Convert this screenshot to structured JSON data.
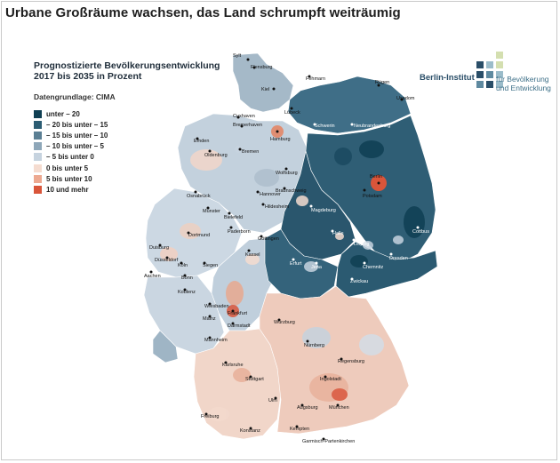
{
  "headline": "Urbane Großräume wachsen, das Land schrumpft weiträumig",
  "map": {
    "title_line1": "Prognostizierte Bevölkerungsentwicklung",
    "title_line2": "2017 bis 2035 in Prozent",
    "source": "Datengrundlage: CIMA"
  },
  "legend": [
    {
      "label": "unter – 20",
      "color": "#0f3f53"
    },
    {
      "label": "– 20 bis unter – 15",
      "color": "#2c5d73"
    },
    {
      "label": "– 15 bis unter – 10",
      "color": "#5b7f94"
    },
    {
      "label": "– 10 bis unter – 5",
      "color": "#8ea7b9"
    },
    {
      "label": "– 5 bis unter 0",
      "color": "#c6d3df"
    },
    {
      "label": "0 bis unter 5",
      "color": "#f5dcd0"
    },
    {
      "label": "5 bis unter 10",
      "color": "#eda991"
    },
    {
      "label": "10 und mehr",
      "color": "#d9553a"
    }
  ],
  "logo": {
    "name": "Berlin-Institut",
    "sub_line1": "für Bevölkerung",
    "sub_line2": "und Entwicklung",
    "colors": [
      "#2a4e68",
      "#5f8aa0",
      "#9bbcca",
      "#d4dfb0"
    ]
  },
  "states": {
    "east": "#3d6a82",
    "north": "#9db3c3",
    "west": "#c9d6e1",
    "center": "#b4c6d4",
    "south_west": "#f3d7ca",
    "bavaria": "#efcebf",
    "coast": "#dfe7ee"
  },
  "cities": [
    "Sylt",
    "Flensburg",
    "Fehmarn",
    "Rügen",
    "Kiel",
    "Lübeck",
    "Usedom",
    "Cuxhaven",
    "Bremerhaven",
    "Hamburg",
    "Schwerin",
    "Neubrandenburg",
    "Emden",
    "Bremen",
    "Oldenburg",
    "Wolfsburg",
    "Berlin",
    "Potsdam",
    "Osnabrück",
    "Hannover",
    "Magdeburg",
    "Münster",
    "Bielefeld",
    "Hildesheim",
    "Braunschweig",
    "Cottbus",
    "Dortmund",
    "Paderborn",
    "Göttingen",
    "Halle",
    "Leipzig",
    "Duisburg",
    "Düsseldorf",
    "Kassel",
    "Erfurt",
    "Jena",
    "Chemnitz",
    "Dresden",
    "Köln",
    "Aachen",
    "Siegen",
    "Bonn",
    "Zwickau",
    "Koblenz",
    "Wiesbaden",
    "Frankfurt",
    "Mainz",
    "Darmstadt",
    "Würzburg",
    "Mannheim",
    "Nürnberg",
    "Karlsruhe",
    "Stuttgart",
    "Regensburg",
    "Ingolstadt",
    "Ulm",
    "Augsburg",
    "München",
    "Freiburg",
    "Konstanz",
    "Kempten",
    "Garmisch-Partenkirchen"
  ]
}
